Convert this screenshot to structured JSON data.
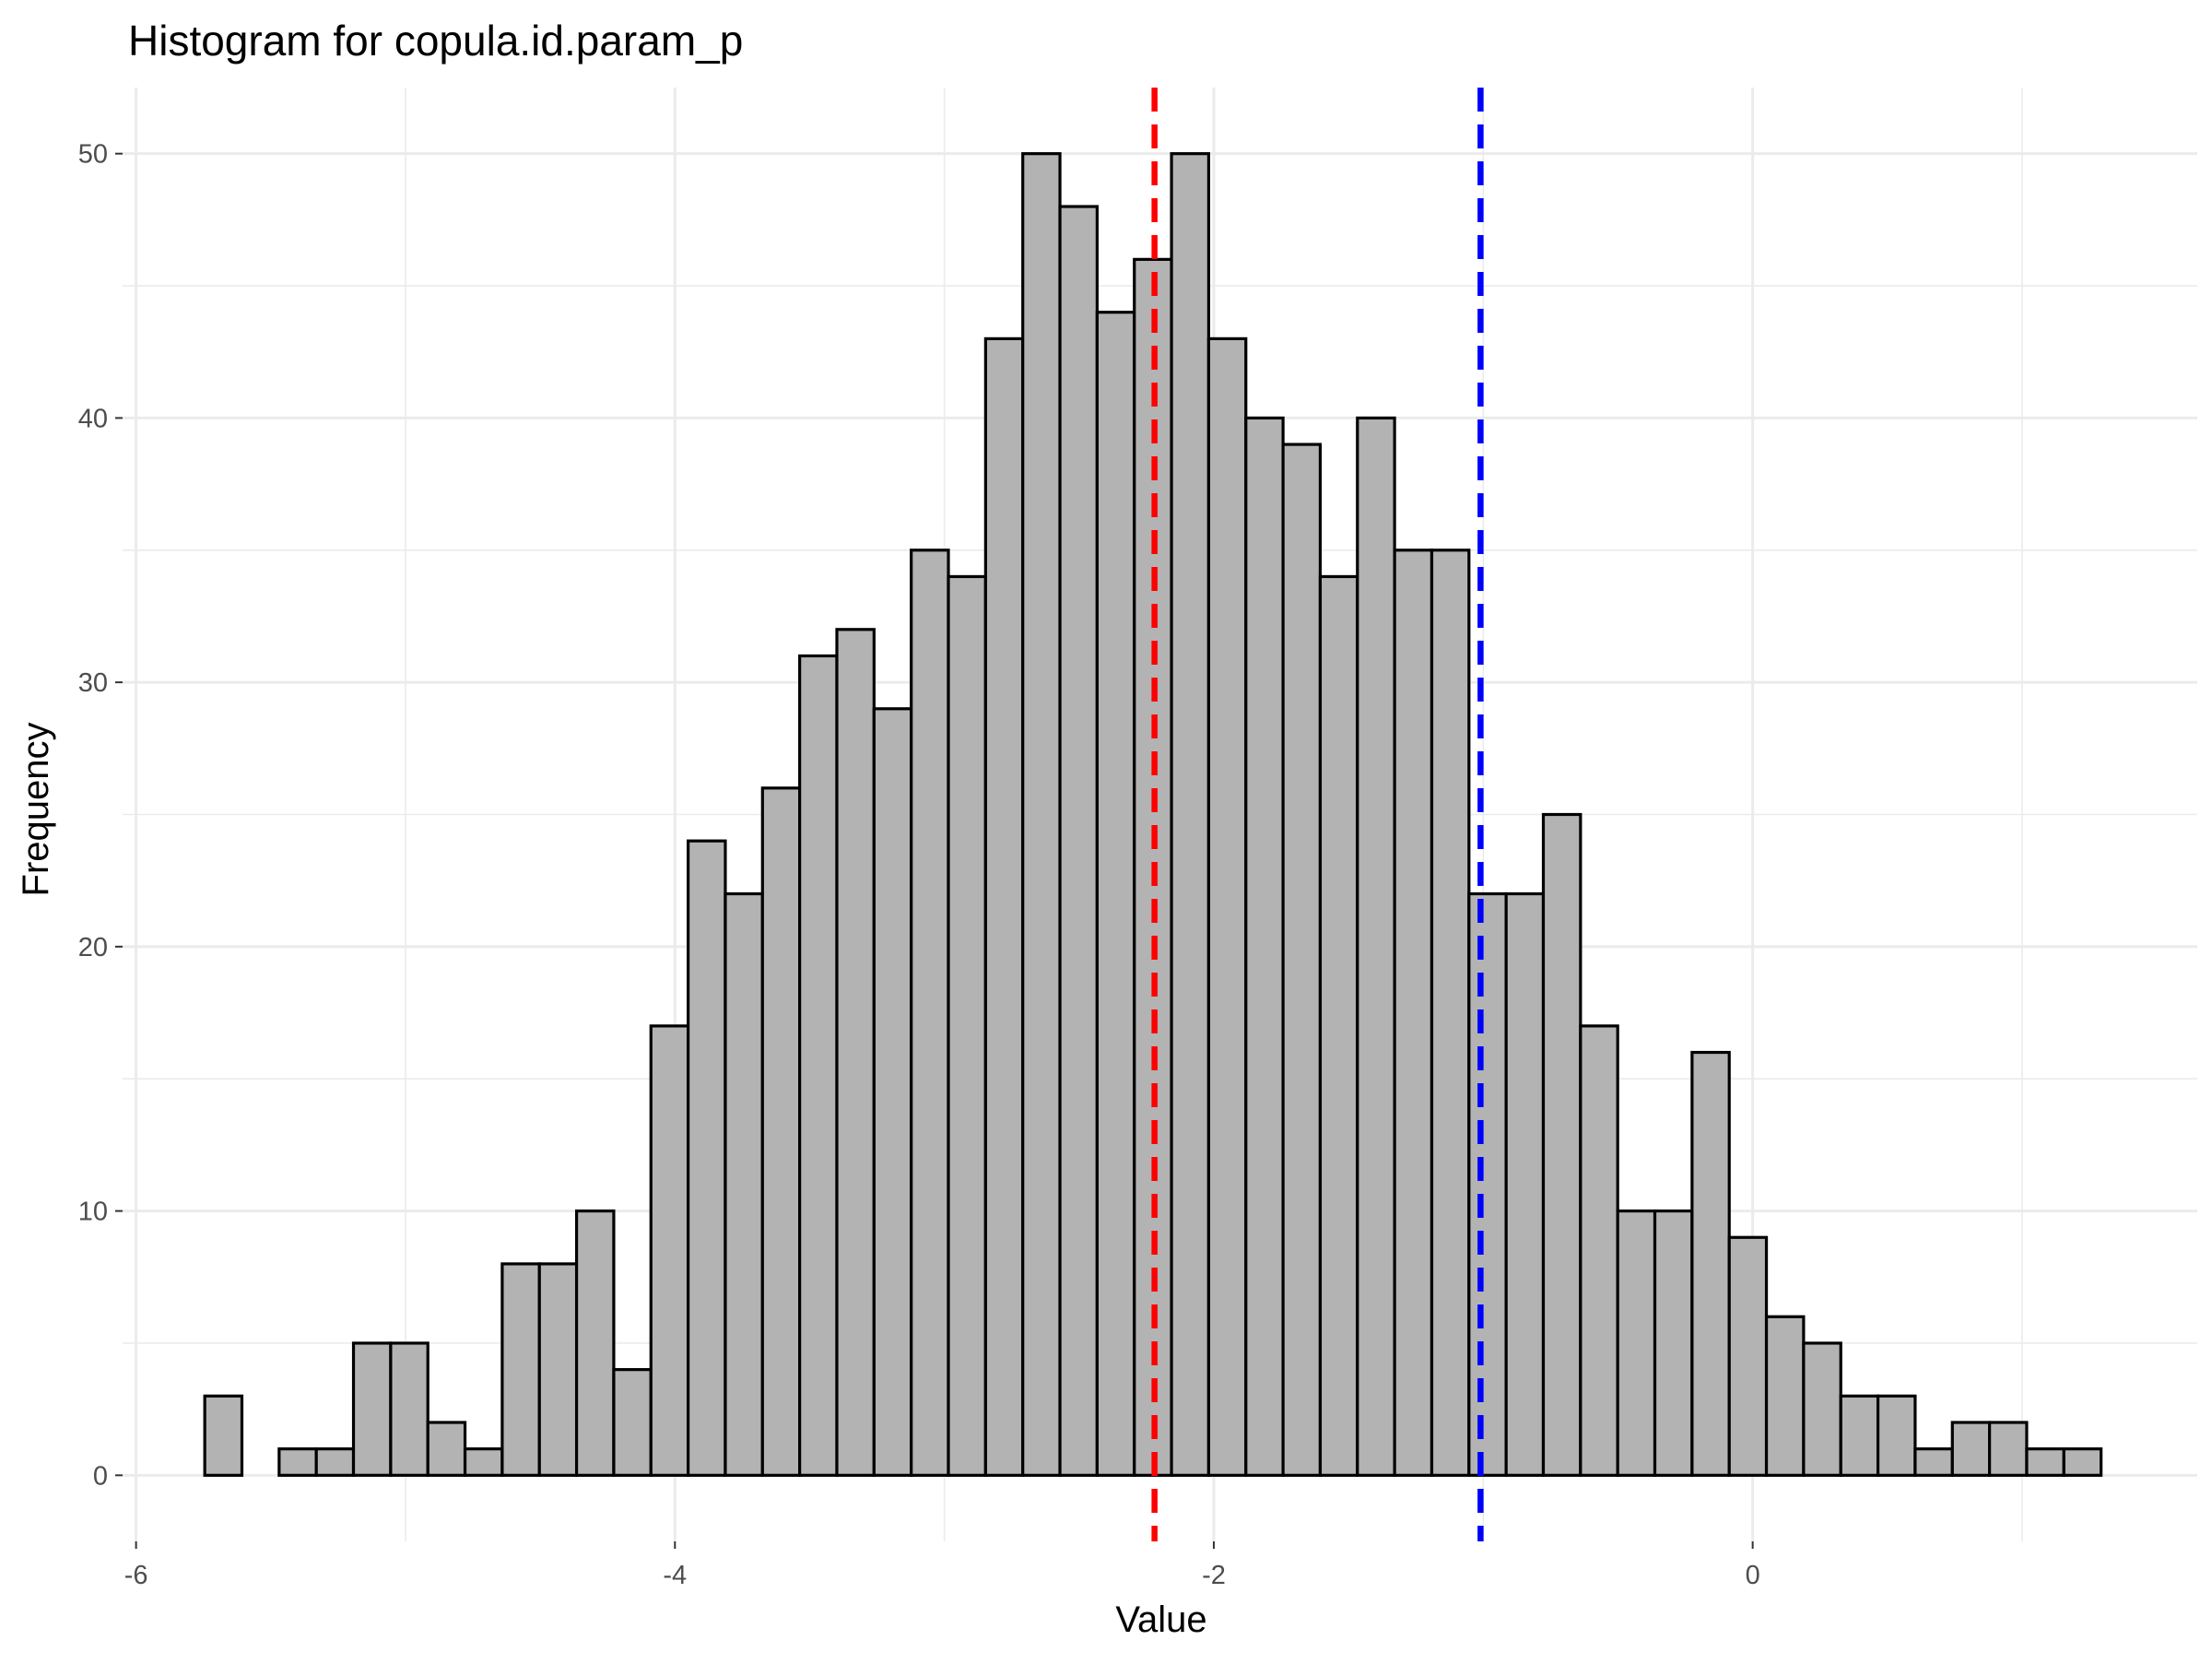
{
  "chart_data": {
    "type": "histogram",
    "title": "Histogram for copula.id.param_p",
    "xlabel": "Value",
    "ylabel": "Frequency",
    "xlim": [
      -6.05,
      1.65
    ],
    "ylim": [
      -2.5,
      52.5
    ],
    "x_ticks": [
      -6,
      -4,
      -2,
      0
    ],
    "x_tick_labels": [
      "-6",
      "-4",
      "-2",
      "0"
    ],
    "y_ticks": [
      0,
      10,
      20,
      30,
      40,
      50
    ],
    "y_tick_labels": [
      "0",
      "10",
      "20",
      "30",
      "40",
      "50"
    ],
    "bin_start": -5.745,
    "bin_width": 0.138,
    "counts": [
      3,
      0,
      1,
      1,
      5,
      5,
      2,
      1,
      8,
      8,
      10,
      4,
      17,
      24,
      22,
      26,
      31,
      32,
      29,
      35,
      34,
      43,
      50,
      48,
      44,
      46,
      50,
      43,
      40,
      39,
      34,
      40,
      35,
      35,
      22,
      22,
      25,
      17,
      10,
      10,
      16,
      9,
      6,
      5,
      3,
      3,
      1,
      2,
      2,
      1,
      1
    ],
    "bar_fill": "#b3b3b3",
    "bar_outline": "#000000",
    "grid": true,
    "legend": "none",
    "vlines": [
      {
        "x": -2.22,
        "color": "#ff0000",
        "style": "dashed"
      },
      {
        "x": -1.01,
        "color": "#0000ff",
        "style": "dashed"
      }
    ]
  }
}
